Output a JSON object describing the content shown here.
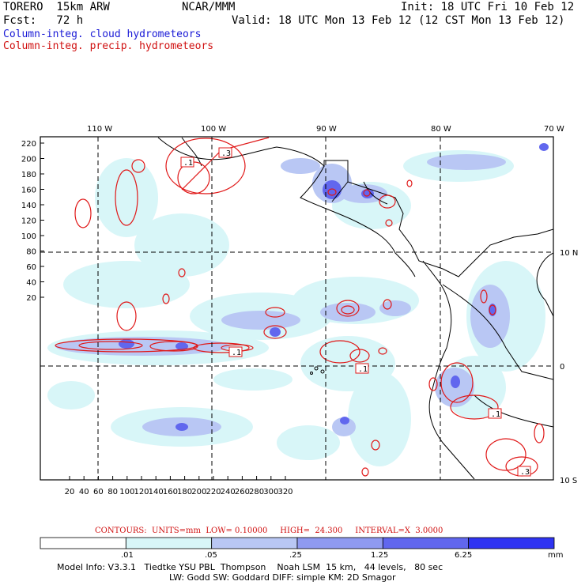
{
  "header": {
    "model": "TORERO  15km ARW",
    "org": "NCAR/MMM",
    "init": "Init: 18 UTC Fri 10 Feb 12",
    "fcst": "Fcst:   72 h",
    "valid": "Valid: 18 UTC Mon 13 Feb 12 (12 CST Mon 13 Feb 12)"
  },
  "legend": {
    "cloud": "Column-integ. cloud hydrometeors",
    "precip": "Column-integ. precip. hydrometeors"
  },
  "map": {
    "top_lon_labels": [
      "110 W",
      "100 W",
      "90 W",
      "80 W",
      "70 W"
    ],
    "right_lat_labels": [
      "10 N",
      "0",
      "10 S"
    ],
    "y_ticks": [
      "220",
      "200",
      "180",
      "160",
      "140",
      "120",
      "100",
      "80",
      "60",
      "40",
      "20"
    ],
    "x_ticks": [
      "20",
      "40",
      "60",
      "80",
      "100",
      "120",
      "140",
      "160",
      "180",
      "200",
      "220",
      "240",
      "260",
      "280",
      "300",
      "320"
    ],
    "contour_labels": [
      ".3",
      ".1",
      ".1",
      ".1",
      ".1",
      ".3"
    ]
  },
  "contours": "CONTOURS:  UNITS=mm  LOW= 0.10000     HIGH=  24.300     INTERVAL=X  3.0000",
  "colorbar": {
    "labels": [
      ".01",
      ".05",
      ".25",
      "1.25",
      "6.25"
    ],
    "unit": "mm",
    "colors": [
      "#ffffff",
      "#d8f6f8",
      "#b9c7f4",
      "#8f9af0",
      "#6167ee",
      "#2f34f2"
    ]
  },
  "footer": {
    "line1": "Model Info: V3.3.1   Tiedtke YSU PBL  Thompson    Noah LSM  15 km,   44 levels,   80 sec",
    "line2": "LW: Godd SW: Goddard DIFF: simple KM: 2D Smagor"
  }
}
